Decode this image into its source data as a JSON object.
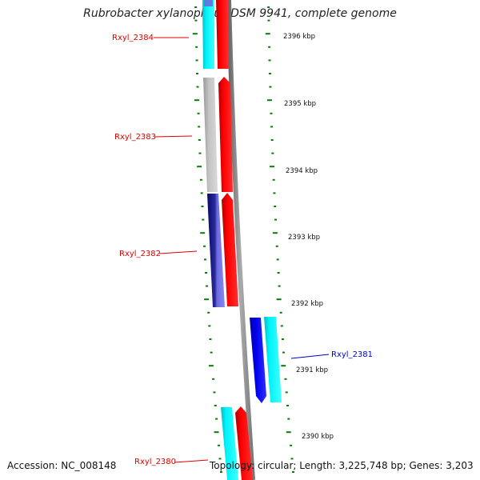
{
  "title": "Rubrobacter xylanophilus DSM 9941, complete genome",
  "footer": {
    "accession": "Accession: NC_008148",
    "info": "Topology: circular; Length: 3,225,748 bp; Genes: 3,203"
  },
  "colors": {
    "ruler_tick": "#0a7a0a",
    "backbone": "#888888",
    "label_red": "#dd0000",
    "label_blue": "#0000cc",
    "gene_red": "#ff0000",
    "gene_cyan": "#00e5ee",
    "gene_gray": "#bbbbbb",
    "gene_navy": "#1a1a8c",
    "gene_purple": "#6a6adf",
    "gene_blue": "#0000ee"
  },
  "kbp_labels": [
    "2396 kbp",
    "2395 kbp",
    "2394 kbp",
    "2393 kbp",
    "2392 kbp",
    "2391 kbp",
    "2390 kbp"
  ],
  "genes": [
    {
      "label": "Rxyl_2384",
      "strand": "left",
      "label_color": "red"
    },
    {
      "label": "Rxyl_2383",
      "strand": "left",
      "label_color": "red"
    },
    {
      "label": "Rxyl_2382",
      "strand": "left",
      "label_color": "red"
    },
    {
      "label": "Rxyl_2381",
      "strand": "right",
      "label_color": "blue"
    },
    {
      "label": "Rxyl_2380",
      "strand": "left",
      "label_color": "red"
    }
  ]
}
